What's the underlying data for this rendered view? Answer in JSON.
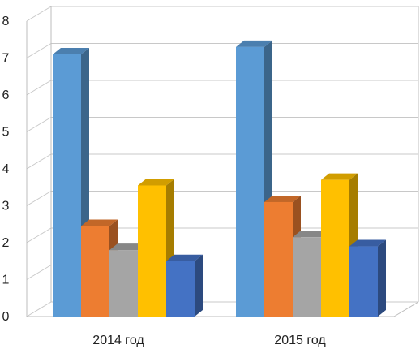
{
  "chart_data": {
    "type": "bar",
    "style": "3d-clustered-column",
    "categories": [
      "2014 год",
      "2015 год"
    ],
    "series": [
      {
        "values": [
          7.1,
          7.3
        ],
        "color": "#5B9BD5"
      },
      {
        "values": [
          2.45,
          3.1
        ],
        "color": "#ED7D31"
      },
      {
        "values": [
          1.8,
          2.15
        ],
        "color": "#A5A5A5"
      },
      {
        "values": [
          3.55,
          3.7
        ],
        "color": "#FFC000"
      },
      {
        "values": [
          1.5,
          1.9
        ],
        "color": "#4472C4"
      }
    ],
    "yticks": [
      "0",
      "1",
      "2",
      "3",
      "4",
      "5",
      "6",
      "7",
      "8"
    ],
    "ylim": [
      0,
      8
    ],
    "grid": true,
    "legend": "none"
  }
}
